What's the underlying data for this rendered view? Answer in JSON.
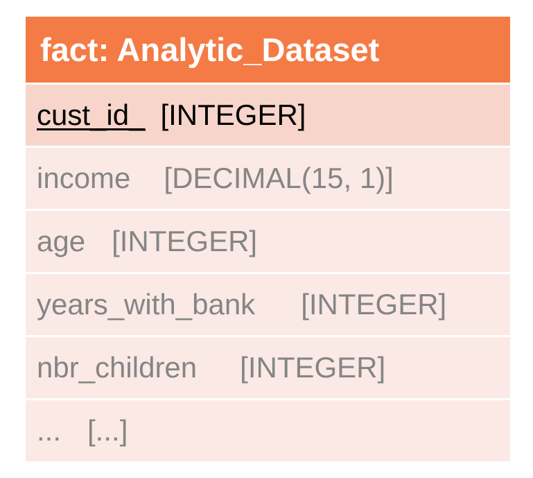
{
  "entity": {
    "title": "fact: Analytic_Dataset",
    "primary_key": {
      "name": "cust_id_",
      "type": "[INTEGER]"
    },
    "attributes": [
      {
        "name": "income",
        "type": "[DECIMAL(15, 1)]"
      },
      {
        "name": "age",
        "type": "[INTEGER]"
      },
      {
        "name": "years_with_bank",
        "type": "[INTEGER]"
      },
      {
        "name": "nbr_children",
        "type": "[INTEGER]"
      },
      {
        "name": "...",
        "type": "[...]"
      }
    ]
  },
  "colors": {
    "header": "#F47B45",
    "key_row": "#F7D5CB",
    "attr_row": "#FBE9E5",
    "attr_text": "#858585"
  }
}
